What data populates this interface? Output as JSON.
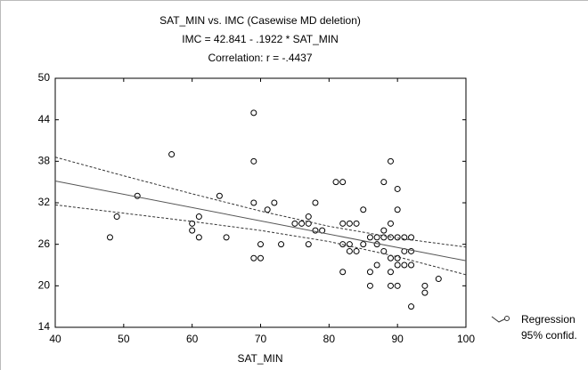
{
  "chart_data": {
    "type": "scatter",
    "title": "SAT_MIN vs. IMC (Casewise MD deletion)",
    "subtitle": "IMC = 42.841 - .1922 * SAT_MIN",
    "note": "Correlation: r = -.4437",
    "x_label": "SAT_MIN",
    "xlim": [
      40,
      100
    ],
    "xticks": [
      40,
      50,
      60,
      70,
      80,
      90,
      100
    ],
    "ylim": [
      14,
      50
    ],
    "yticks": [
      14,
      20,
      26,
      32,
      38,
      44,
      50
    ],
    "grid": false,
    "legend": "bottom-right",
    "series": [
      {
        "color": "#000000",
        "x": [
          48,
          49,
          52,
          57,
          60,
          60,
          61,
          61,
          64,
          65,
          69,
          69,
          69,
          69,
          70,
          70,
          71,
          72,
          73,
          75,
          76,
          77,
          77,
          77,
          78,
          78,
          79,
          81,
          82,
          82,
          82,
          82,
          83,
          83,
          83,
          84,
          84,
          85,
          85,
          86,
          86,
          86,
          87,
          87,
          87,
          88,
          88,
          88,
          88,
          89,
          89,
          89,
          89,
          89,
          89,
          90,
          90,
          90,
          90,
          90,
          90,
          91,
          91,
          91,
          92,
          92,
          92,
          92,
          94,
          94,
          96
        ],
        "values": [
          27,
          30,
          33,
          39,
          29,
          28,
          30,
          27,
          33,
          27,
          45,
          38,
          32,
          24,
          24,
          26,
          31,
          32,
          26,
          29,
          29,
          29,
          30,
          26,
          32,
          28,
          28,
          35,
          35,
          29,
          26,
          22,
          29,
          26,
          25,
          29,
          25,
          31,
          26,
          27,
          22,
          20,
          27,
          26,
          23,
          35,
          28,
          27,
          25,
          38,
          29,
          27,
          24,
          22,
          20,
          34,
          31,
          27,
          24,
          23,
          20,
          27,
          25,
          23,
          27,
          25,
          23,
          17,
          20,
          19,
          21
        ]
      },
      {
        "name": "Regression",
        "color": "#555555",
        "x": [
          40,
          100
        ],
        "values": [
          35.15,
          23.62
        ]
      },
      {
        "name": "95% confid.",
        "color": "#333333",
        "x": [
          40,
          50,
          60,
          70,
          80,
          90,
          100
        ],
        "upper": [
          38.6,
          35.9,
          33.3,
          30.8,
          28.6,
          26.9,
          25.6
        ],
        "lower": [
          31.7,
          30.5,
          29.3,
          28.0,
          26.4,
          24.2,
          21.6
        ]
      }
    ]
  }
}
